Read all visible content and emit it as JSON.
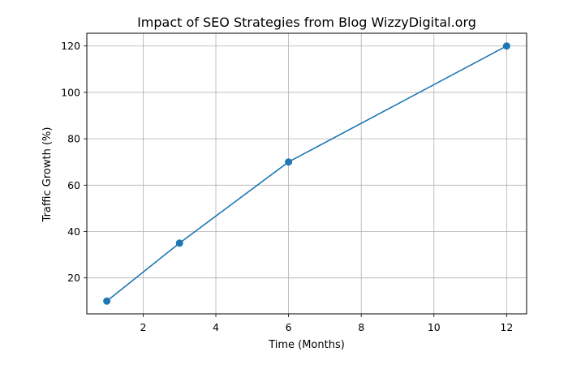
{
  "chart_data": {
    "type": "line",
    "title": "Impact of SEO Strategies from Blog WizzyDigital.org",
    "xlabel": "Time (Months)",
    "ylabel": "Traffic Growth (%)",
    "xlim": [
      0.45,
      12.55
    ],
    "ylim": [
      4.5,
      125.5
    ],
    "xticks": [
      2,
      4,
      6,
      8,
      10,
      12
    ],
    "yticks": [
      20,
      40,
      60,
      80,
      100,
      120
    ],
    "grid": true,
    "legend": "none",
    "series": [
      {
        "x": [
          1,
          3,
          6,
          12
        ],
        "y": [
          10,
          35,
          70,
          120
        ],
        "color": "#1f77b4",
        "marker": "circle"
      }
    ]
  }
}
